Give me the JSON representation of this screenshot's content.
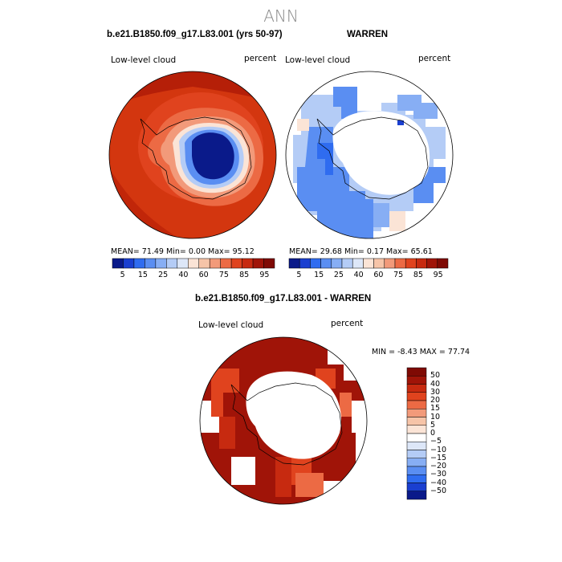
{
  "figure": {
    "title": "ANN"
  },
  "panels": {
    "model": {
      "title": "b.e21.B1850.f09_g17.L83.001 (yrs 50-97)",
      "variable": "Low-level cloud",
      "units": "percent",
      "stats": "MEAN=   71.49   Min=     0.00   Max=    95.12"
    },
    "obs": {
      "title": "WARREN",
      "variable": "Low-level cloud",
      "units": "percent",
      "stats": "MEAN=   29.68   Min=     0.17   Max=    65.61"
    },
    "diff": {
      "title": "b.e21.B1850.f09_g17.L83.001 - WARREN",
      "variable": "Low-level cloud",
      "units": "percent",
      "stats": "MIN =    -8.43  MAX =   77.74"
    }
  },
  "colorbars": {
    "absolute": {
      "colors": [
        "#0a1a8a",
        "#1a3fd0",
        "#2f6cf0",
        "#5a8ef2",
        "#87aef4",
        "#b4ccf6",
        "#dde7f8",
        "#fbe4d6",
        "#f6c4a8",
        "#f29a7a",
        "#ec6a44",
        "#e0431e",
        "#c72a10",
        "#a01408",
        "#7f0a04"
      ],
      "labels": [
        "5",
        "15",
        "25",
        "40",
        "60",
        "75",
        "85",
        "95"
      ]
    },
    "difference": {
      "colors": [
        "#7f0a04",
        "#a01408",
        "#c72a10",
        "#e0431e",
        "#ec6a44",
        "#f29a7a",
        "#f6c4a8",
        "#fbe4d6",
        "#ffffff",
        "#dde7f8",
        "#b4ccf6",
        "#87aef4",
        "#5a8ef2",
        "#2f6cf0",
        "#1a3fd0",
        "#0a1a8a"
      ],
      "labels": [
        "50",
        "40",
        "30",
        "20",
        "15",
        "10",
        "5",
        "0",
        "−5",
        "−10",
        "−15",
        "−20",
        "−30",
        "−40",
        "−50"
      ]
    }
  }
}
